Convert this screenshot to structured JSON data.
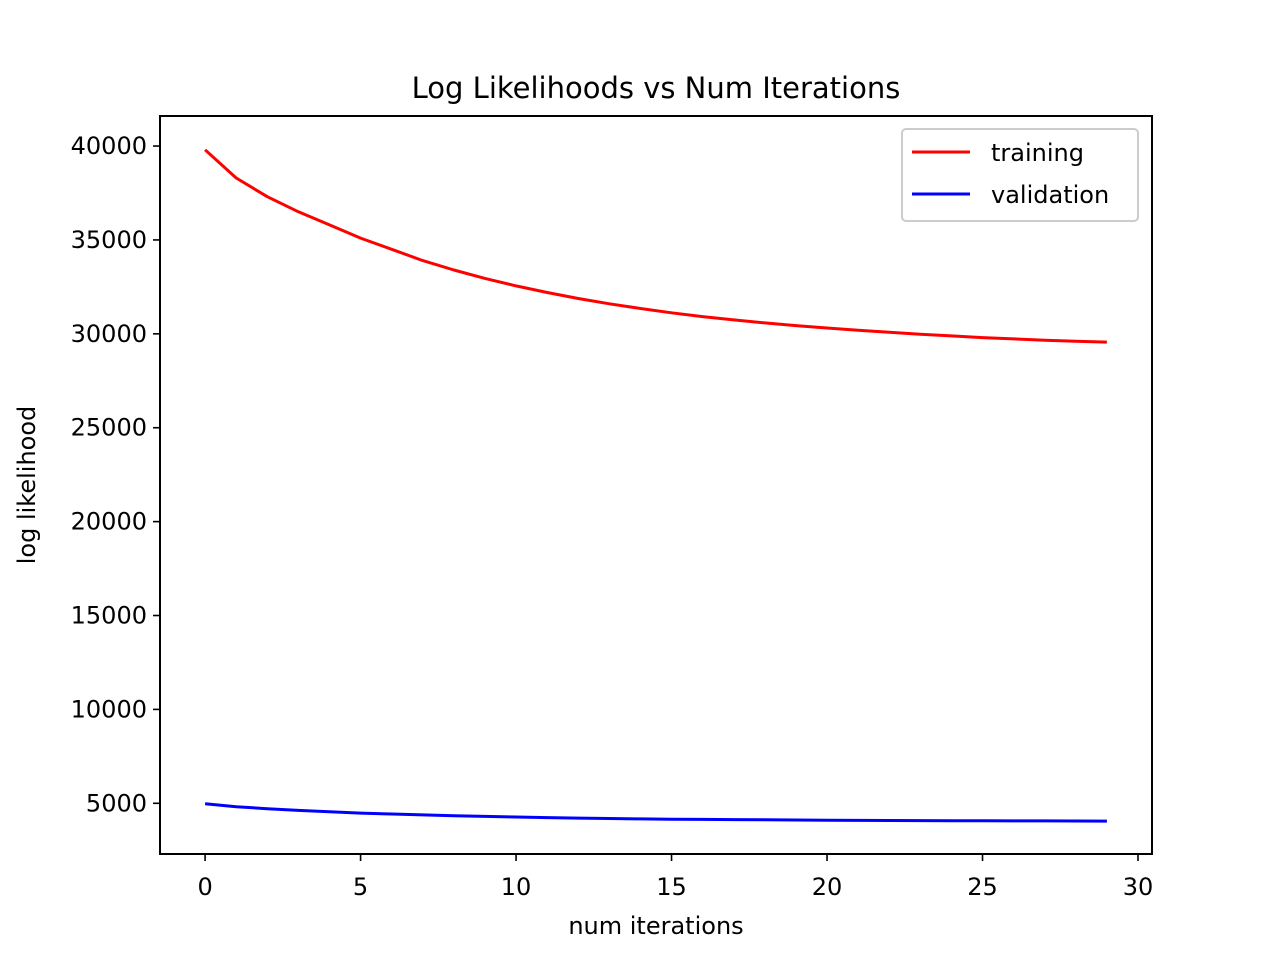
{
  "chart_data": {
    "type": "line",
    "title": "Log Likelihoods vs Num Iterations",
    "xlabel": "num iterations",
    "ylabel": "log likelihood",
    "xlim": [
      -1.45,
      30.45
    ],
    "ylim": [
      2300,
      41600
    ],
    "x_ticks": [
      0,
      5,
      10,
      15,
      20,
      25,
      30
    ],
    "y_ticks": [
      5000,
      10000,
      15000,
      20000,
      25000,
      30000,
      35000,
      40000
    ],
    "grid": false,
    "legend_position": "top-right",
    "x": [
      0,
      1,
      2,
      3,
      4,
      5,
      6,
      7,
      8,
      9,
      10,
      11,
      12,
      13,
      14,
      15,
      16,
      17,
      18,
      19,
      20,
      21,
      22,
      23,
      24,
      25,
      26,
      27,
      28,
      29
    ],
    "series": [
      {
        "name": "training",
        "color": "#ff0000",
        "values": [
          39800,
          38300,
          37300,
          36500,
          35800,
          35100,
          34500,
          33900,
          33400,
          32950,
          32550,
          32200,
          31880,
          31600,
          31350,
          31120,
          30920,
          30740,
          30580,
          30440,
          30310,
          30190,
          30080,
          29980,
          29890,
          29800,
          29730,
          29660,
          29600,
          29560
        ]
      },
      {
        "name": "validation",
        "color": "#0000ff",
        "values": [
          4980,
          4820,
          4710,
          4620,
          4550,
          4480,
          4430,
          4380,
          4340,
          4300,
          4270,
          4240,
          4210,
          4190,
          4170,
          4150,
          4140,
          4130,
          4120,
          4110,
          4100,
          4090,
          4085,
          4080,
          4075,
          4070,
          4065,
          4060,
          4055,
          4050
        ]
      }
    ]
  }
}
